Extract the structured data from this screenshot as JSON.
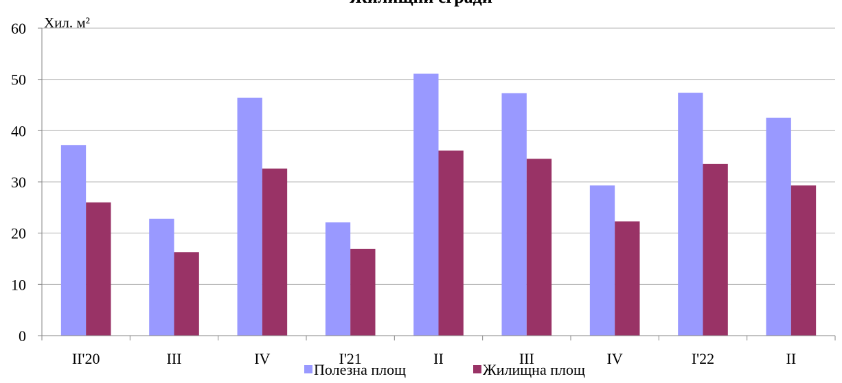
{
  "chart_data": {
    "type": "bar",
    "title": "Жилищни сгради",
    "ylabel": "Хил. м²",
    "ylim": [
      0,
      60
    ],
    "yticks": [
      0,
      10,
      20,
      30,
      40,
      50,
      60
    ],
    "categories": [
      "II'20",
      "III",
      "IV",
      "I'21",
      "II",
      "III",
      "IV",
      "I'22",
      "II"
    ],
    "series": [
      {
        "name": "Полезна площ",
        "color": "#9999ff",
        "values": [
          37.2,
          22.8,
          46.4,
          22.1,
          51.1,
          47.3,
          29.3,
          47.4,
          42.5
        ]
      },
      {
        "name": "Жилищна площ",
        "color": "#993366",
        "values": [
          26.0,
          16.3,
          32.6,
          16.9,
          36.1,
          34.5,
          22.3,
          33.5,
          29.3
        ]
      }
    ],
    "grid": true,
    "legend": "bottom"
  }
}
